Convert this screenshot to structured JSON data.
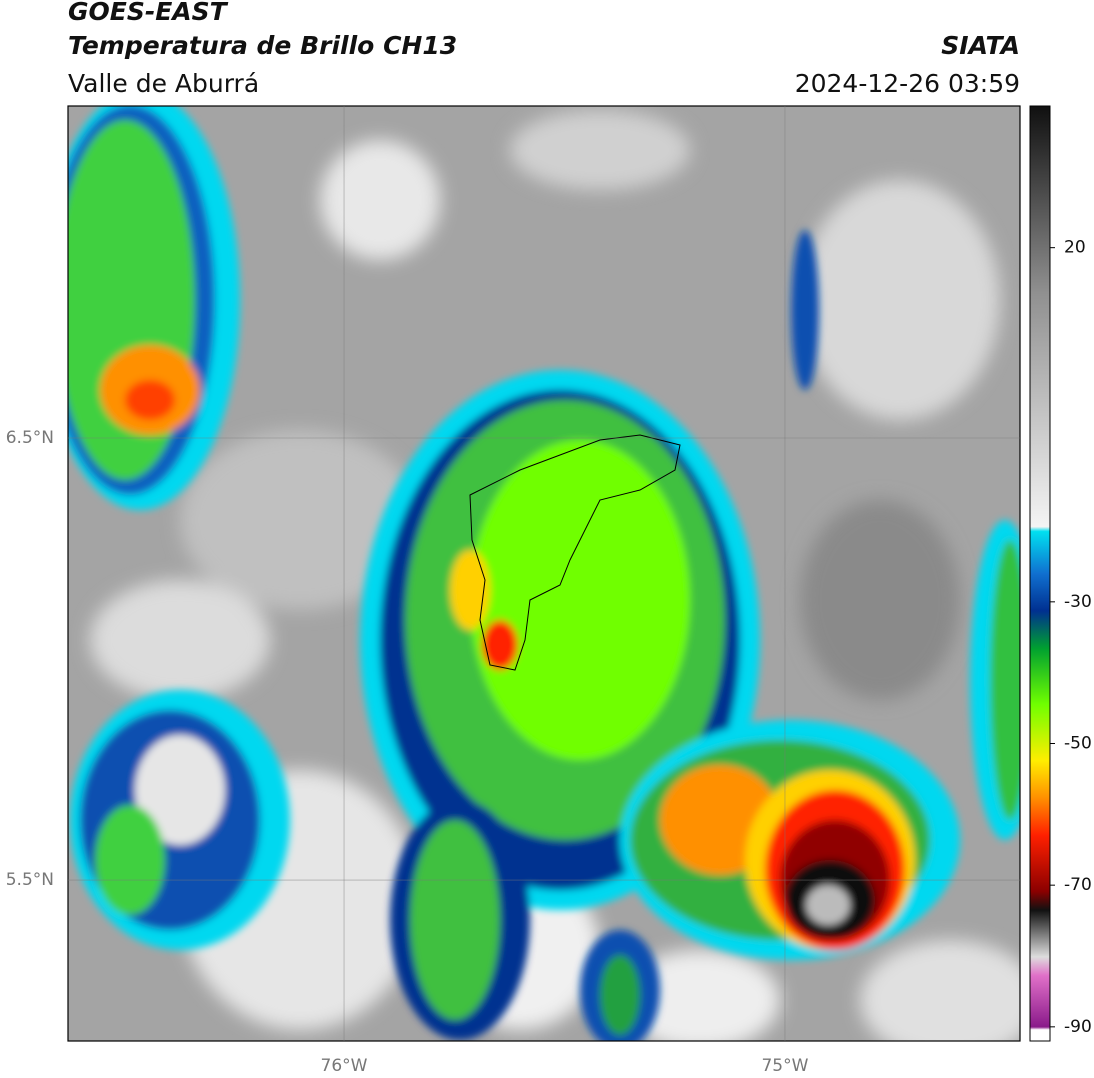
{
  "header": {
    "title": "GOES-EAST",
    "subtitle": "Temperatura de Brillo CH13",
    "region": "Valle de Aburrá",
    "source": "SIATA",
    "datetime": "2024-12-26 03:59"
  },
  "map": {
    "lonlim": [
      -76.626,
      -74.467
    ],
    "latlim": [
      5.136,
      7.251
    ],
    "lonticks": [
      {
        "value": -76,
        "label": "76°W"
      },
      {
        "value": -75,
        "label": "75°W"
      }
    ],
    "latticks": [
      {
        "value": 6.5,
        "label": "6.5°N"
      },
      {
        "value": 5.5,
        "label": "5.5°N"
      }
    ],
    "grid": true
  },
  "colorbar": {
    "lim": [
      -92,
      40
    ],
    "ticks": [
      20,
      -30,
      -50,
      -70,
      -90
    ]
  }
}
